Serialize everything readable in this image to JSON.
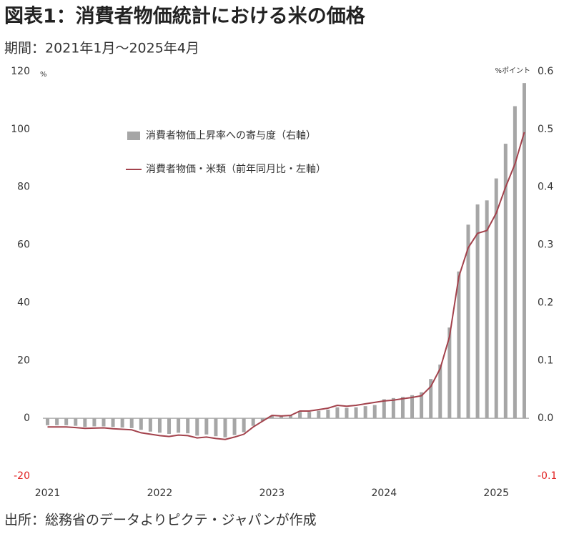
{
  "chart_data": {
    "type": "bar_line",
    "title": "図表1：消費者物価統計における米の価格",
    "subtitle": "期間：2021年1月～2025年4月",
    "source": "出所：総務省のデータよりピクテ・ジャパンが作成",
    "y_unit": "%",
    "y2_unit": "%ポイント",
    "categories": [
      "2021",
      null,
      null,
      null,
      null,
      null,
      null,
      null,
      null,
      null,
      null,
      null,
      "2022",
      null,
      null,
      null,
      null,
      null,
      null,
      null,
      null,
      null,
      null,
      null,
      "2023",
      null,
      null,
      null,
      null,
      null,
      null,
      null,
      null,
      null,
      null,
      null,
      "2024",
      null,
      null,
      null,
      null,
      null,
      null,
      null,
      null,
      null,
      null,
      null,
      "2025",
      null,
      null,
      null
    ],
    "series": [
      {
        "name": "消費者物価上昇率への寄与度（右軸）",
        "kind": "bar",
        "axis": "y2",
        "color": "#a6a6a6",
        "values": [
          -0.012,
          -0.012,
          -0.012,
          -0.013,
          -0.015,
          -0.014,
          -0.014,
          -0.015,
          -0.016,
          -0.017,
          -0.02,
          -0.023,
          -0.025,
          -0.027,
          -0.025,
          -0.026,
          -0.03,
          -0.028,
          -0.031,
          -0.033,
          -0.029,
          -0.024,
          -0.013,
          -0.005,
          0.004,
          0.004,
          0.005,
          0.011,
          0.011,
          0.013,
          0.015,
          0.019,
          0.018,
          0.019,
          0.021,
          0.023,
          0.033,
          0.035,
          0.037,
          0.04,
          0.045,
          0.068,
          0.093,
          0.157,
          0.254,
          0.335,
          0.37,
          0.377,
          0.415,
          0.475,
          0.54,
          0.58
        ]
      },
      {
        "name": "消費者物価・米類（前年同月比・左軸）",
        "kind": "line",
        "axis": "y",
        "color": "#a3424c",
        "values": [
          -3,
          -3,
          -3,
          -3.2,
          -3.5,
          -3.4,
          -3.3,
          -3.6,
          -3.8,
          -4,
          -5,
          -5.5,
          -6,
          -6.3,
          -5.8,
          -6,
          -6.8,
          -6.5,
          -7,
          -7.3,
          -6.5,
          -5.5,
          -3,
          -1,
          1,
          0.8,
          1,
          2.5,
          2.5,
          3,
          3.5,
          4.5,
          4.2,
          4.5,
          5,
          5.5,
          6,
          6.3,
          6.8,
          7.2,
          7.8,
          11,
          17.2,
          28.2,
          49,
          59,
          64,
          65,
          71,
          80,
          88,
          99
        ]
      }
    ],
    "ylim": [
      -20,
      120
    ],
    "yticks": [
      -20,
      0,
      20,
      40,
      60,
      80,
      100,
      120
    ],
    "y2lim": [
      -0.1,
      0.6
    ],
    "y2ticks": [
      -0.1,
      {
        "value": 0,
        "label": "0.0"
      },
      0.1,
      0.2,
      0.3,
      0.4,
      0.5,
      0.6
    ],
    "negative_tick_color": "#e02020"
  }
}
